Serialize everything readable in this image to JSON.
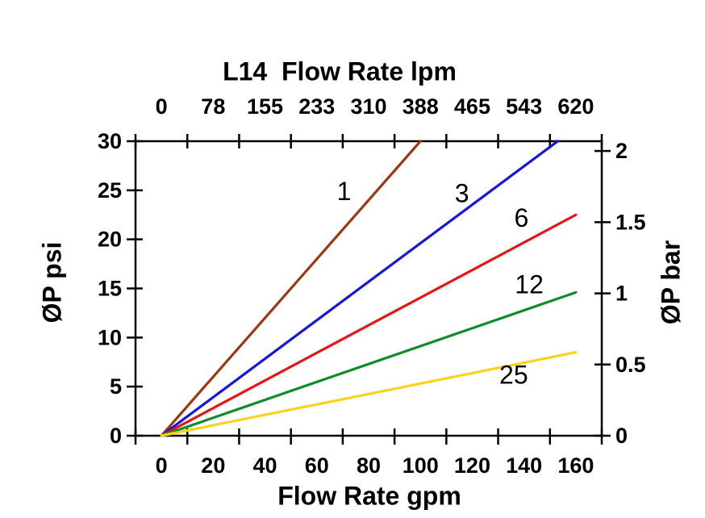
{
  "chart_data": {
    "type": "line",
    "title": "L14  Flow Rate lpm",
    "xlabel": "Flow Rate gpm",
    "ylabel_left": "ØP psi",
    "ylabel_right": "ØP bar",
    "grid": false,
    "legend": "inline curve labels",
    "x_range_gpm": [
      -10,
      170
    ],
    "y_range_psi": [
      0,
      30
    ],
    "frame_tick_gpm": [
      -10,
      10,
      30,
      50,
      70,
      90,
      110,
      130,
      150,
      170
    ],
    "x_axis_bottom": {
      "label_positions_gpm": [
        0,
        20,
        40,
        60,
        80,
        100,
        120,
        140,
        160
      ],
      "tick_labels": [
        "0",
        "20",
        "40",
        "60",
        "80",
        "100",
        "120",
        "140",
        "160"
      ]
    },
    "x_axis_top": {
      "label_positions_gpm": [
        0,
        20,
        40,
        60,
        80,
        100,
        120,
        140,
        160
      ],
      "tick_labels": [
        "0",
        "78",
        "155",
        "233",
        "310",
        "388",
        "465",
        "543",
        "620"
      ]
    },
    "y_axis_left": {
      "ticks_psi": [
        0,
        5,
        10,
        15,
        20,
        25,
        30
      ],
      "tick_labels": [
        "0",
        "5",
        "10",
        "15",
        "20",
        "25",
        "30"
      ]
    },
    "y_axis_right": {
      "ticks_bar": [
        0,
        0.5,
        1,
        1.5,
        2
      ],
      "tick_labels": [
        "0",
        "0.5",
        "1",
        "1.5",
        "2"
      ],
      "psi_per_bar": 14.5
    },
    "series": [
      {
        "label": "1",
        "color": "#9A380F",
        "points_gpm_psi": [
          [
            0,
            0
          ],
          [
            100,
            30
          ]
        ],
        "label_at_gpm_psi": [
          70.5,
          24.9
        ]
      },
      {
        "label": "3",
        "color": "#1616DC",
        "points_gpm_psi": [
          [
            0,
            0
          ],
          [
            153,
            30
          ]
        ],
        "label_at_gpm_psi": [
          116,
          24.7
        ]
      },
      {
        "label": "6",
        "color": "#E81515",
        "points_gpm_psi": [
          [
            0,
            0
          ],
          [
            160,
            22.5
          ]
        ],
        "label_at_gpm_psi": [
          139,
          22.2
        ]
      },
      {
        "label": "12",
        "color": "#0E8C2A",
        "points_gpm_psi": [
          [
            0,
            0
          ],
          [
            160,
            14.6
          ]
        ],
        "label_at_gpm_psi": [
          142,
          15.4
        ]
      },
      {
        "label": "25",
        "color": "#FFD11E",
        "points_gpm_psi": [
          [
            0,
            0
          ],
          [
            160,
            8.5
          ]
        ],
        "label_at_gpm_psi": [
          136,
          6.2
        ]
      }
    ],
    "colors": {
      "axis": "#000000",
      "background": "#FFFFFF"
    }
  }
}
